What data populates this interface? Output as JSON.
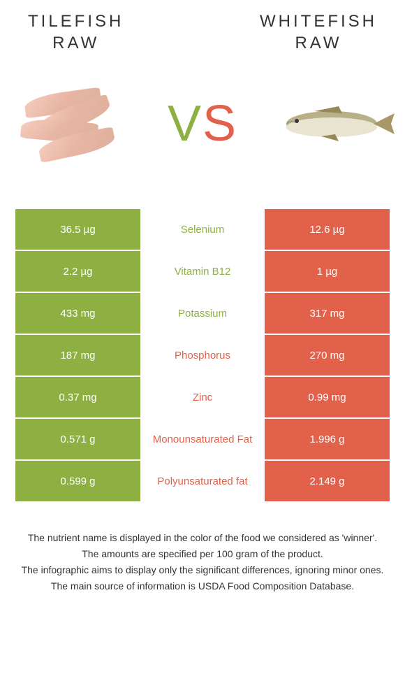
{
  "colors": {
    "green": "#8eb042",
    "orange": "#e1614a",
    "white": "#ffffff",
    "text": "#333333"
  },
  "header": {
    "left_line1": "TILEFISH",
    "left_line2": "RAW",
    "right_line1": "WHITEFISH",
    "right_line2": "RAW"
  },
  "vs": {
    "v": "V",
    "s": "S"
  },
  "table": {
    "left_bg": "#8eb042",
    "right_bg": "#e1614a",
    "rows": [
      {
        "left": "36.5 µg",
        "label": "Selenium",
        "right": "12.6 µg",
        "winner": "left"
      },
      {
        "left": "2.2 µg",
        "label": "Vitamin B12",
        "right": "1 µg",
        "winner": "left"
      },
      {
        "left": "433 mg",
        "label": "Potassium",
        "right": "317 mg",
        "winner": "left"
      },
      {
        "left": "187 mg",
        "label": "Phosphorus",
        "right": "270 mg",
        "winner": "right"
      },
      {
        "left": "0.37 mg",
        "label": "Zinc",
        "right": "0.99 mg",
        "winner": "right"
      },
      {
        "left": "0.571 g",
        "label": "Monounsaturated Fat",
        "right": "1.996 g",
        "winner": "right"
      },
      {
        "left": "0.599 g",
        "label": "Polyunsaturated fat",
        "right": "2.149 g",
        "winner": "right"
      }
    ]
  },
  "footer": {
    "line1": "The nutrient name is displayed in the color of the food we considered as 'winner'.",
    "line2": "The amounts are specified per 100 gram of the product.",
    "line3": "The infographic aims to display only the significant differences, ignoring minor ones.",
    "line4": "The main source of information is USDA Food Composition Database."
  }
}
